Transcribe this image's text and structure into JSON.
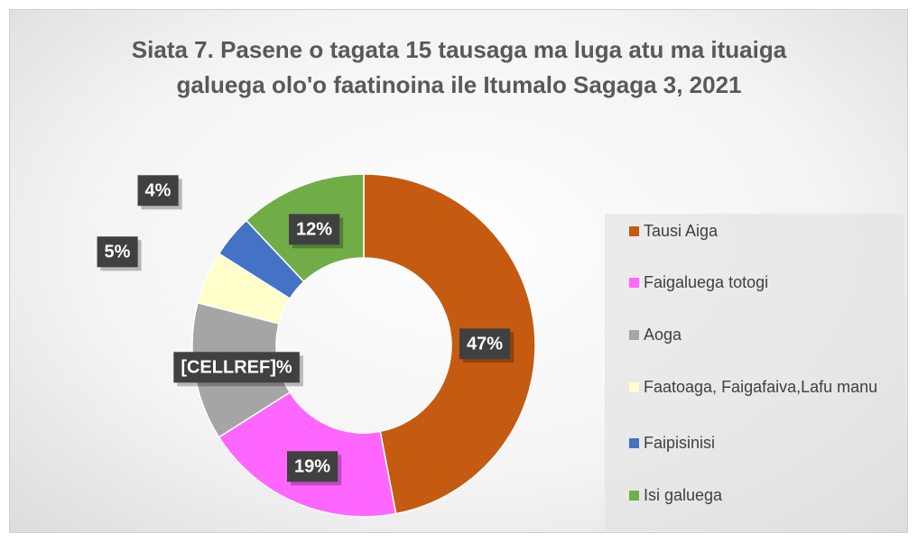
{
  "chart_data": {
    "type": "donut",
    "title": "Siata 7. Pasene o tagata 15 tausaga ma luga atu ma ituaiga galuega olo'o faatinoina ile Itumalo Sagaga 3, 2021",
    "categories": [
      "Tausi Aiga",
      "Faigaluega totogi",
      "Aoga",
      "Faatoaga, Faigafaiva,Lafu manu",
      "Faipisinisi",
      "Isi galuega"
    ],
    "values": [
      47,
      19,
      13,
      5,
      4,
      12
    ],
    "value_labels": [
      "47%",
      "19%",
      "[CELLREF]%",
      "5%",
      "4%",
      "12%"
    ],
    "colors": [
      "#C55A11",
      "#FF66FF",
      "#A5A5A5",
      "#FFFFCC",
      "#4472C4",
      "#70AD47"
    ],
    "legend": "right"
  }
}
